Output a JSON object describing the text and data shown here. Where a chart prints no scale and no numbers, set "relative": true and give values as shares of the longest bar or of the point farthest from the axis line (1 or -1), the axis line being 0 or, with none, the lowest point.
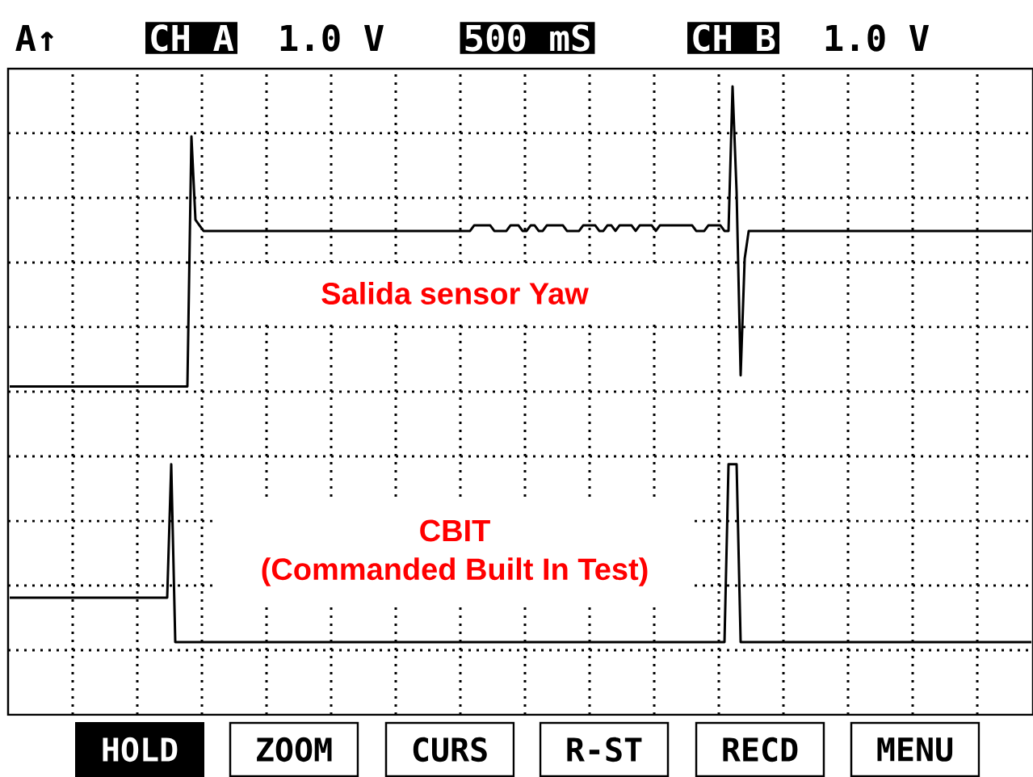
{
  "chart_data": {
    "type": "line",
    "relative": true,
    "grid": true,
    "annotations": [
      "A↑",
      "CH A",
      "1.0 V",
      "500 mS",
      "CH B",
      "1.0 V",
      "Salida sensor Yaw",
      "CBIT",
      "(Commanded Built In Test)",
      "HOLD",
      "ZOOM",
      "CURS",
      "R-ST",
      "RECD",
      "MENU"
    ],
    "categories": [
      null,
      null,
      null,
      null,
      null,
      null,
      null,
      null,
      null,
      null,
      null,
      null,
      null,
      null,
      null,
      null,
      null,
      null,
      null,
      null,
      null,
      null,
      null,
      null,
      null,
      null,
      null,
      null,
      null,
      null,
      null,
      null,
      null,
      null,
      null,
      null,
      null,
      null,
      null,
      null,
      null,
      null,
      null,
      null,
      null,
      null,
      null,
      null,
      null,
      null,
      null,
      null,
      null,
      null,
      null,
      null,
      null,
      null,
      null,
      null,
      null,
      null,
      null,
      null,
      null,
      null,
      null,
      null,
      null,
      null,
      null,
      null,
      null,
      null,
      null,
      null,
      null,
      null,
      null,
      null,
      null,
      null,
      null,
      null,
      null,
      null,
      null,
      null,
      null,
      null,
      null,
      null,
      null,
      null,
      null,
      null,
      null,
      null,
      null,
      null,
      null,
      null,
      null,
      null,
      null,
      null,
      null,
      null,
      null,
      null,
      null,
      null,
      null,
      null,
      null,
      null,
      null,
      null,
      null,
      null,
      null,
      null,
      null,
      null,
      null,
      null,
      null,
      null,
      null,
      null,
      null,
      null,
      null,
      null,
      null,
      null,
      null,
      null,
      null,
      null,
      null,
      null,
      null,
      null,
      null,
      null,
      null,
      null,
      null,
      null,
      null,
      null,
      null,
      null,
      null,
      null,
      null,
      null,
      null,
      null,
      null,
      null,
      null,
      null,
      null,
      null,
      null,
      null,
      null,
      null,
      null,
      null,
      null,
      null,
      null,
      null,
      null,
      null,
      null,
      null,
      null,
      null,
      null,
      null,
      null,
      null,
      null,
      null,
      null,
      null,
      null,
      null,
      null,
      null,
      null,
      null,
      null,
      null,
      null,
      null,
      null,
      null,
      null,
      null,
      null,
      null,
      null,
      null,
      null,
      null,
      null,
      null,
      null,
      null,
      null,
      null,
      null,
      null,
      null,
      null,
      null,
      null,
      null,
      null,
      null,
      null,
      null,
      null,
      null,
      null,
      null,
      null,
      null,
      null,
      null,
      null,
      null,
      null,
      null,
      null,
      null,
      null,
      null,
      null,
      null,
      null,
      null,
      null,
      null,
      null,
      null,
      null,
      null,
      null
    ],
    "series": [
      {
        "color": "#000000",
        "values": [
          0.46,
          0.46,
          0.46,
          0.46,
          0.46,
          0.46,
          0.46,
          0.46,
          0.46,
          0.46,
          0.46,
          0.46,
          0.46,
          0.46,
          0.46,
          0.46,
          0.46,
          0.46,
          0.46,
          0.46,
          0.46,
          0.46,
          0.46,
          0.46,
          0.46,
          0.46,
          0.46,
          0.46,
          0.46,
          0.46,
          0.46,
          0.46,
          0.46,
          0.46,
          0.46,
          0.46,
          0.46,
          0.46,
          0.46,
          0.46,
          0.46,
          0.46,
          0.46,
          0.46,
          0.46,
          0.91,
          0.76,
          0.75,
          0.74,
          0.74,
          0.74,
          0.74,
          0.74,
          0.74,
          0.74,
          0.74,
          0.74,
          0.74,
          0.74,
          0.74,
          0.74,
          0.74,
          0.74,
          0.74,
          0.74,
          0.74,
          0.74,
          0.74,
          0.74,
          0.74,
          0.74,
          0.74,
          0.74,
          0.74,
          0.74,
          0.74,
          0.74,
          0.74,
          0.74,
          0.74,
          0.74,
          0.74,
          0.74,
          0.74,
          0.74,
          0.74,
          0.74,
          0.74,
          0.74,
          0.74,
          0.74,
          0.74,
          0.74,
          0.74,
          0.74,
          0.74,
          0.74,
          0.74,
          0.74,
          0.74,
          0.74,
          0.74,
          0.74,
          0.74,
          0.74,
          0.74,
          0.74,
          0.74,
          0.74,
          0.74,
          0.74,
          0.74,
          0.74,
          0.74,
          0.74,
          0.75,
          0.75,
          0.75,
          0.75,
          0.75,
          0.74,
          0.74,
          0.74,
          0.74,
          0.75,
          0.75,
          0.75,
          0.74,
          0.74,
          0.75,
          0.75,
          0.74,
          0.74,
          0.75,
          0.75,
          0.75,
          0.75,
          0.75,
          0.74,
          0.74,
          0.74,
          0.74,
          0.75,
          0.75,
          0.75,
          0.75,
          0.74,
          0.74,
          0.75,
          0.75,
          0.74,
          0.75,
          0.75,
          0.75,
          0.75,
          0.74,
          0.75,
          0.75,
          0.75,
          0.75,
          0.74,
          0.75,
          0.75,
          0.75,
          0.75,
          0.75,
          0.75,
          0.75,
          0.75,
          0.75,
          0.74,
          0.74,
          0.74,
          0.75,
          0.75,
          0.75,
          0.75,
          0.74,
          0.74,
          1.0,
          0.81,
          0.48,
          0.69,
          0.74,
          0.74,
          0.74,
          0.74,
          0.74,
          0.74,
          0.74,
          0.74,
          0.74,
          0.74,
          0.74,
          0.74,
          0.74,
          0.74,
          0.74,
          0.74,
          0.74,
          0.74,
          0.74,
          0.74,
          0.74,
          0.74,
          0.74,
          0.74,
          0.74,
          0.74,
          0.74,
          0.74,
          0.74,
          0.74,
          0.74,
          0.74,
          0.74,
          0.74,
          0.74,
          0.74,
          0.74,
          0.74,
          0.74,
          0.74,
          0.74,
          0.74,
          0.74,
          0.74,
          0.74,
          0.74,
          0.74,
          0.74,
          0.74,
          0.74,
          0.74,
          0.74,
          0.74,
          0.74,
          0.74,
          0.74,
          0.74,
          0.74,
          0.74,
          0.74,
          0.74,
          0.74,
          0.74,
          0.74,
          0.74,
          0.74,
          0.74,
          0.74,
          0.74,
          0.74,
          0.74
        ]
      },
      {
        "color": "#000000",
        "values": [
          0.08,
          0.08,
          0.08,
          0.08,
          0.08,
          0.08,
          0.08,
          0.08,
          0.08,
          0.08,
          0.08,
          0.08,
          0.08,
          0.08,
          0.08,
          0.08,
          0.08,
          0.08,
          0.08,
          0.08,
          0.08,
          0.08,
          0.08,
          0.08,
          0.08,
          0.08,
          0.08,
          0.08,
          0.08,
          0.08,
          0.08,
          0.08,
          0.08,
          0.08,
          0.08,
          0.08,
          0.08,
          0.08,
          0.08,
          0.08,
          0.32,
          0,
          0,
          0,
          0,
          0,
          0,
          0,
          0,
          0,
          0,
          0,
          0,
          0,
          0,
          0,
          0,
          0,
          0,
          0,
          0,
          0,
          0,
          0,
          0,
          0,
          0,
          0,
          0,
          0,
          0,
          0,
          0,
          0,
          0,
          0,
          0,
          0,
          0,
          0,
          0,
          0,
          0,
          0,
          0,
          0,
          0,
          0,
          0,
          0,
          0,
          0,
          0,
          0,
          0,
          0,
          0,
          0,
          0,
          0,
          0,
          0,
          0,
          0,
          0,
          0,
          0,
          0,
          0,
          0,
          0,
          0,
          0,
          0,
          0,
          0,
          0,
          0,
          0,
          0,
          0,
          0,
          0,
          0,
          0,
          0,
          0,
          0,
          0,
          0,
          0,
          0,
          0,
          0,
          0,
          0,
          0,
          0,
          0,
          0,
          0,
          0,
          0,
          0,
          0,
          0,
          0,
          0,
          0,
          0,
          0,
          0,
          0,
          0,
          0,
          0,
          0,
          0,
          0,
          0,
          0,
          0,
          0,
          0,
          0,
          0,
          0,
          0,
          0,
          0,
          0,
          0,
          0,
          0,
          0,
          0,
          0,
          0,
          0.32,
          0.32,
          0.32,
          0,
          0,
          0,
          0,
          0,
          0,
          0,
          0,
          0,
          0,
          0,
          0,
          0,
          0,
          0,
          0,
          0,
          0,
          0,
          0,
          0,
          0,
          0,
          0,
          0,
          0,
          0,
          0,
          0,
          0,
          0,
          0,
          0,
          0,
          0,
          0,
          0,
          0,
          0,
          0,
          0,
          0,
          0,
          0,
          0,
          0,
          0,
          0,
          0,
          0,
          0,
          0,
          0,
          0,
          0,
          0,
          0,
          0,
          0,
          0,
          0,
          0,
          0,
          0,
          0,
          0,
          0,
          0,
          0,
          0,
          0,
          0,
          0
        ]
      }
    ]
  }
}
